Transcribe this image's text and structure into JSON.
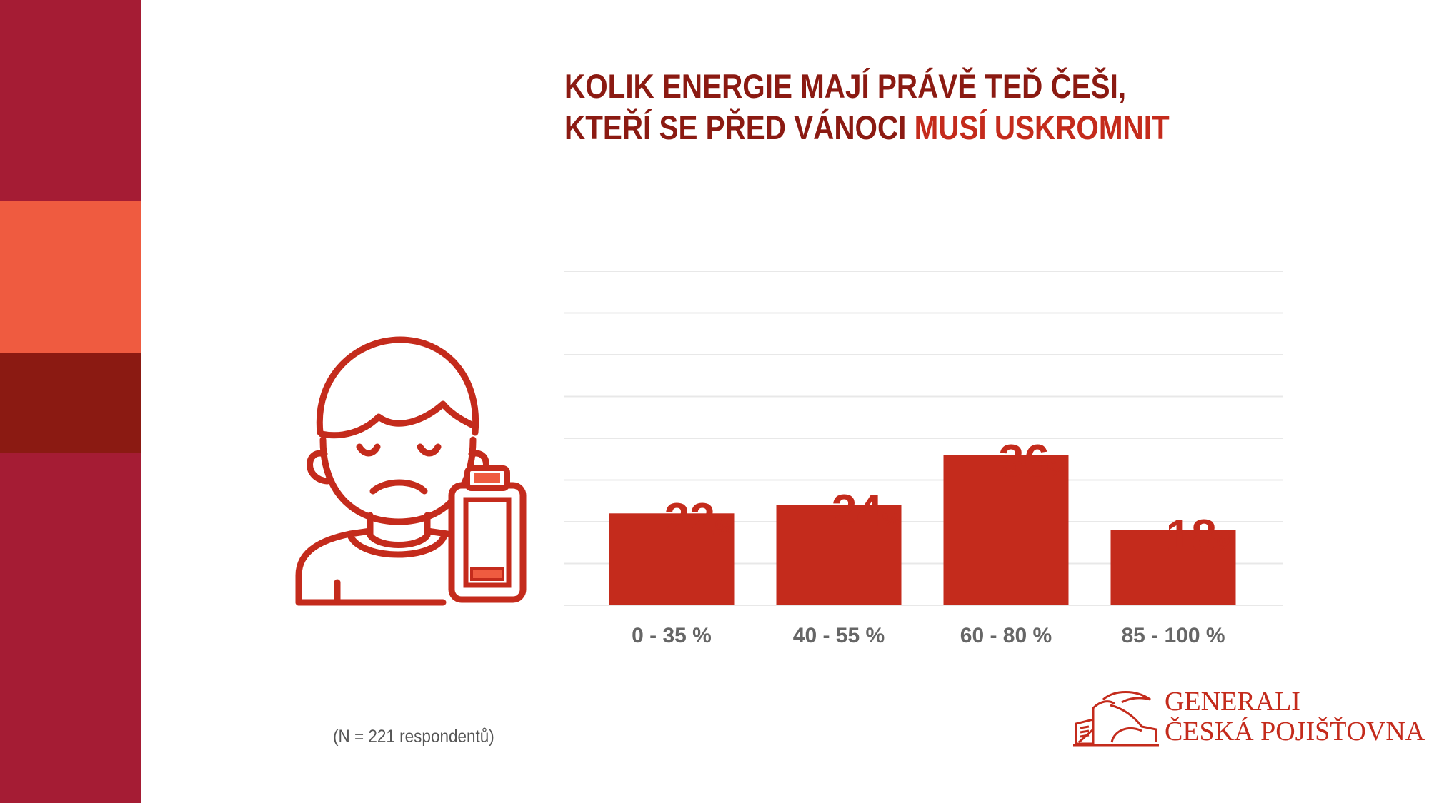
{
  "title": {
    "line1": "KOLIK ENERGIE MAJÍ PRÁVĚ TEĎ ČEŠI,",
    "line2_prefix": "KTEŘÍ SE PŘED VÁNOCI ",
    "line2_highlight": "MUSÍ USKROMNIT"
  },
  "note": "(N = 221 respondentů)",
  "logo": {
    "line1": "GENERALI",
    "line2": "ČESKÁ POJIŠŤOVNA"
  },
  "colors": {
    "bar": "#c42b1c",
    "title": "#8b1a12",
    "accent": "#c42b1c",
    "stripe_top": "#a51c34",
    "stripe_mid": "#ef5b40",
    "stripe_dark": "#8b1a12",
    "grid": "#e8e8e8",
    "category_label": "#666666"
  },
  "icon": "person-with-low-battery-icon",
  "chart_data": {
    "type": "bar",
    "categories": [
      "0 - 35 %",
      "40 - 55 %",
      "60 - 80 %",
      "85 - 100 %"
    ],
    "values": [
      22,
      24,
      36,
      18
    ],
    "value_suffix": "%",
    "ylim": [
      0,
      80
    ],
    "grid": true,
    "title": "",
    "xlabel": "",
    "ylabel": ""
  }
}
